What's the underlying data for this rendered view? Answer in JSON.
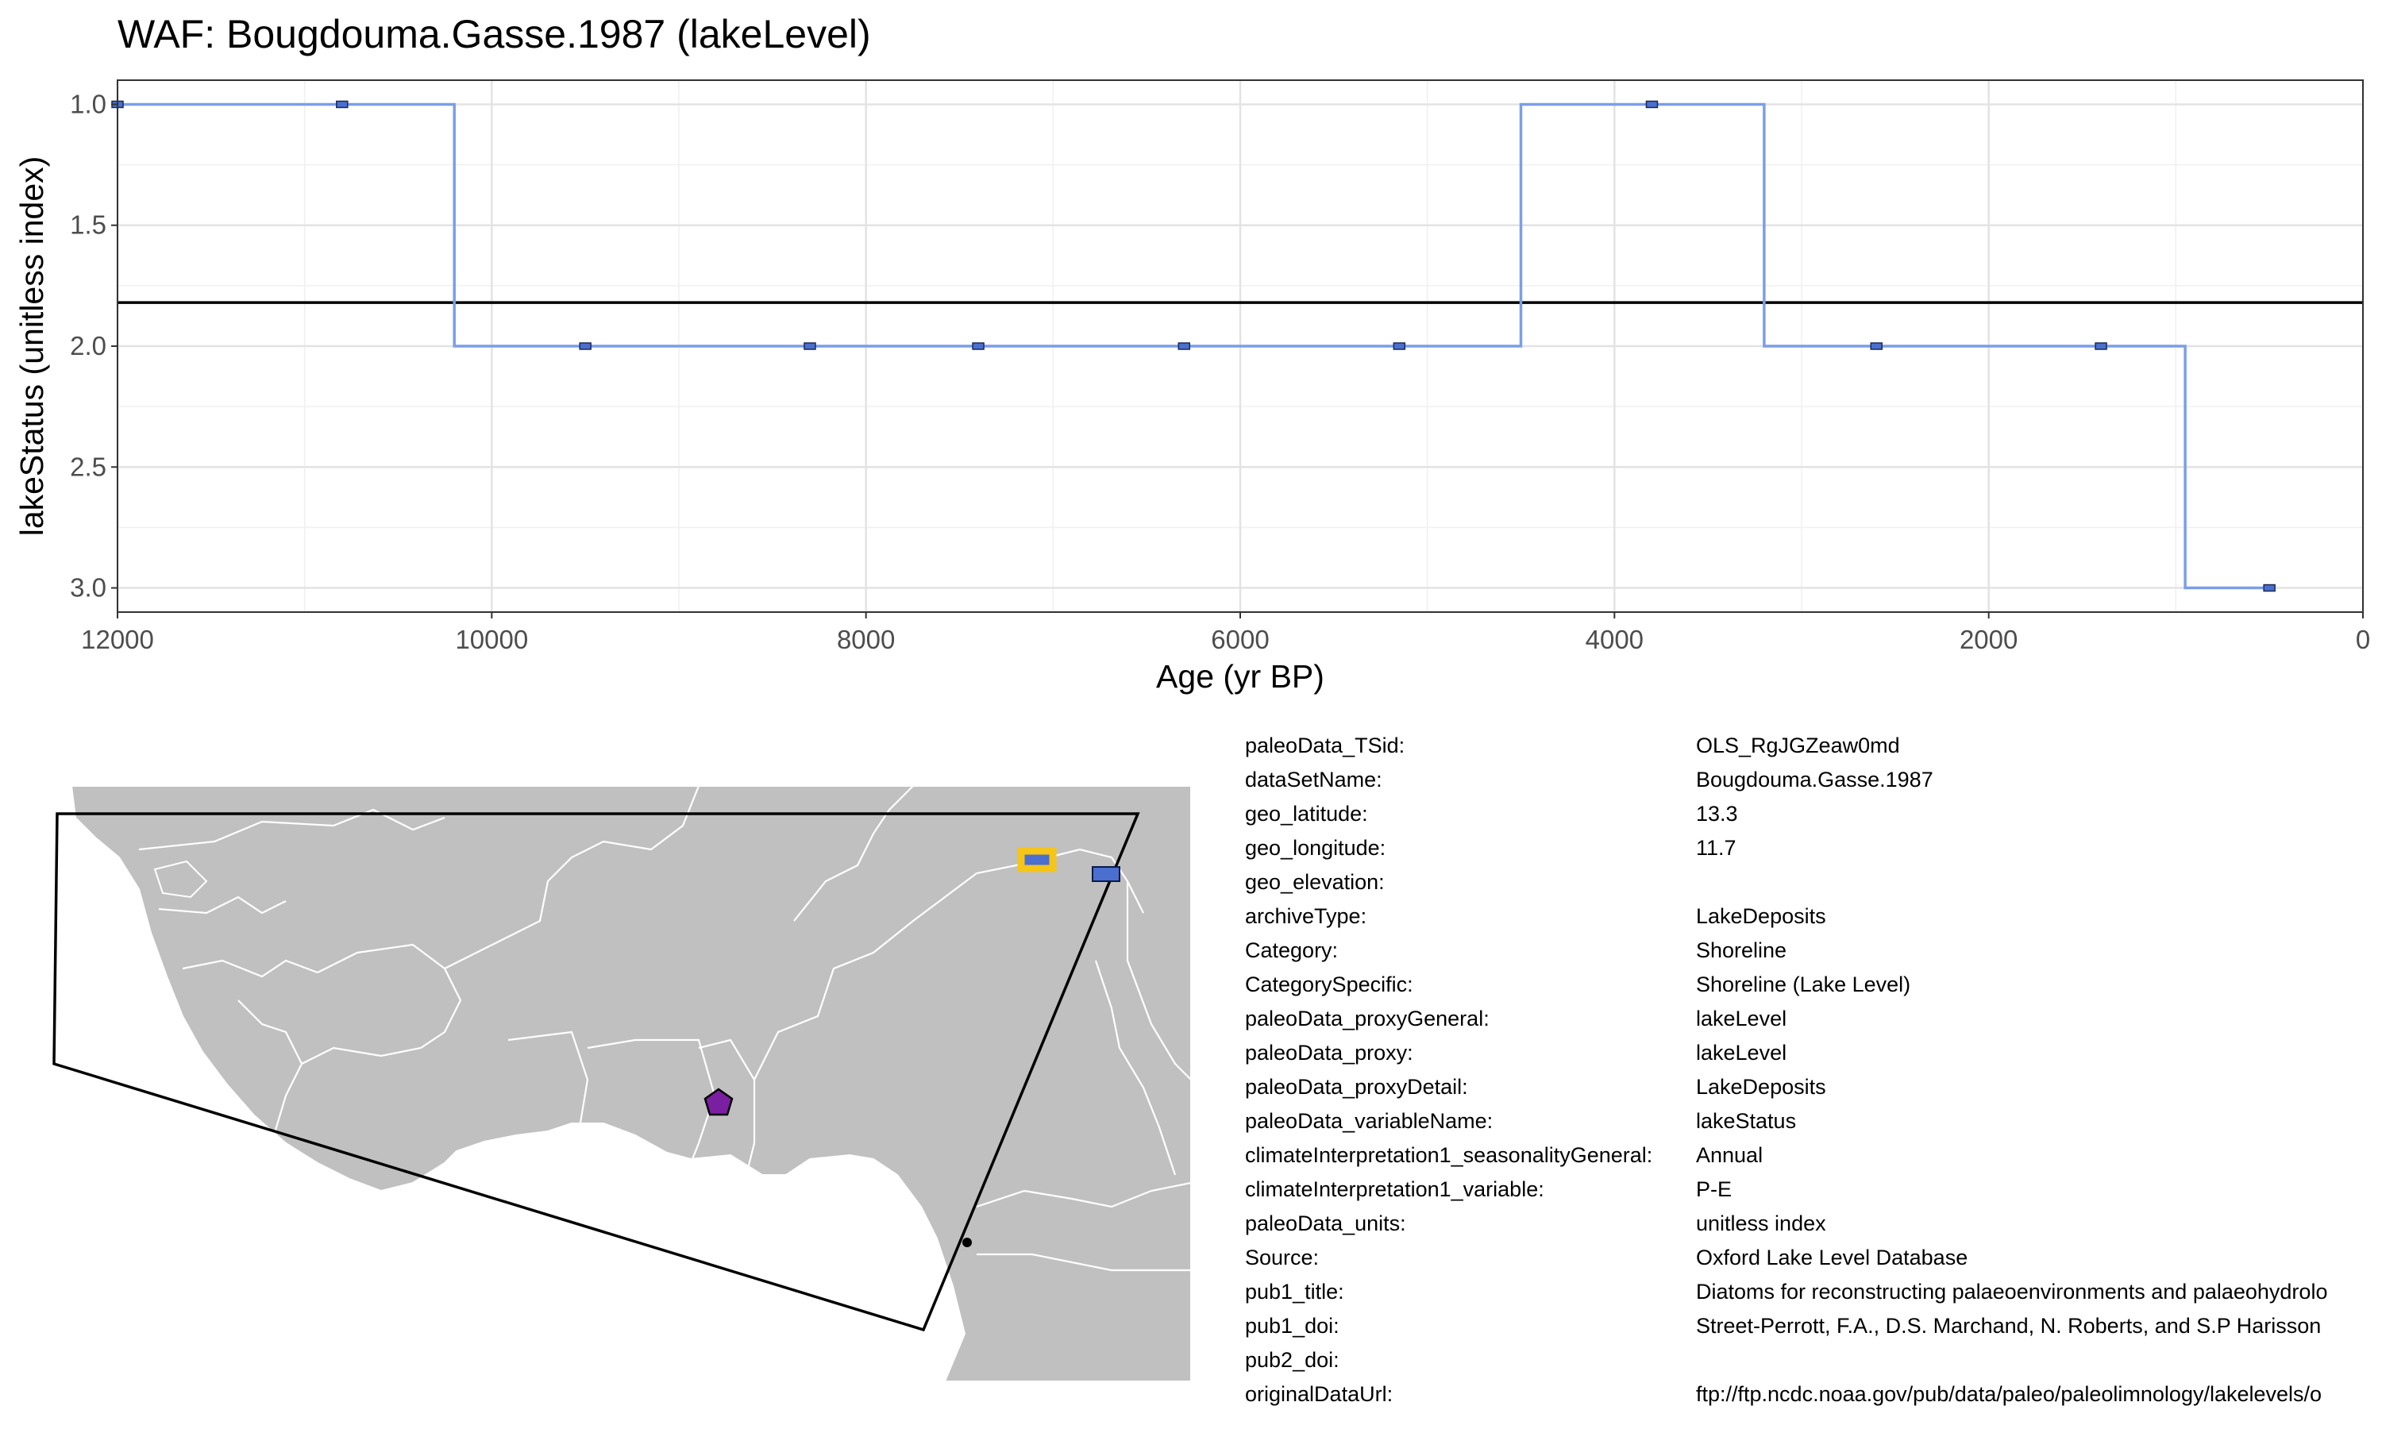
{
  "chart_data": {
    "type": "line",
    "title": "WAF: Bougdouma.Gasse.1987 (lakeLevel)",
    "xlabel": "Age (yr BP)",
    "ylabel": "lakeStatus (unitless index)",
    "xlim": [
      12000,
      0
    ],
    "ylim": [
      3.1,
      0.9
    ],
    "x_reversed": true,
    "y_reversed": true,
    "xticks": [
      12000,
      10000,
      8000,
      6000,
      4000,
      2000,
      0
    ],
    "yticks": [
      1.0,
      1.5,
      2.0,
      2.5,
      3.0
    ],
    "grid": true,
    "reference_line": 1.82,
    "series": [
      {
        "style": "step",
        "color": "#7b9ee8",
        "steps": [
          {
            "x_from": 12000,
            "x_to": 10200,
            "y": 1
          },
          {
            "x_from": 10200,
            "x_to": 4500,
            "y": 2
          },
          {
            "x_from": 4500,
            "x_to": 3200,
            "y": 1
          },
          {
            "x_from": 3200,
            "x_to": 950,
            "y": 2
          },
          {
            "x_from": 950,
            "x_to": 500,
            "y": 3
          }
        ]
      },
      {
        "style": "points",
        "marker_color": "#4a6fcf",
        "x": [
          12000,
          10800,
          9500,
          8300,
          7400,
          6300,
          5150,
          3800,
          2600,
          1400,
          500
        ],
        "y": [
          1,
          1,
          2,
          2,
          2,
          2,
          2,
          1,
          2,
          2,
          3
        ]
      }
    ]
  },
  "metadata_table": [
    {
      "key": "paleoData_TSid:",
      "value": "OLS_RgJGZeaw0md"
    },
    {
      "key": "dataSetName:",
      "value": "Bougdouma.Gasse.1987"
    },
    {
      "key": "geo_latitude:",
      "value": "13.3"
    },
    {
      "key": "geo_longitude:",
      "value": "11.7"
    },
    {
      "key": "geo_elevation:",
      "value": ""
    },
    {
      "key": "archiveType:",
      "value": "LakeDeposits"
    },
    {
      "key": "Category:",
      "value": "Shoreline"
    },
    {
      "key": "CategorySpecific:",
      "value": "Shoreline (Lake Level)"
    },
    {
      "key": "paleoData_proxyGeneral:",
      "value": "lakeLevel"
    },
    {
      "key": "paleoData_proxy:",
      "value": "lakeLevel"
    },
    {
      "key": "paleoData_proxyDetail:",
      "value": "LakeDeposits"
    },
    {
      "key": "paleoData_variableName:",
      "value": "lakeStatus"
    },
    {
      "key": "climateInterpretation1_seasonalityGeneral:",
      "value": "Annual"
    },
    {
      "key": "climateInterpretation1_variable:",
      "value": "P-E"
    },
    {
      "key": "paleoData_units:",
      "value": "unitless index"
    },
    {
      "key": "Source:",
      "value": "Oxford Lake Level Database"
    },
    {
      "key": "pub1_title:",
      "value": "Diatoms for reconstructing palaeoenvironments and palaeohydrolo"
    },
    {
      "key": "pub1_doi:",
      "value": "Street-Perrott, F.A., D.S. Marchand, N. Roberts, and S.P Harisson"
    },
    {
      "key": "pub2_doi:",
      "value": ""
    },
    {
      "key": "originalDataUrl:",
      "value": "ftp://ftp.ncdc.noaa.gov/pub/data/paleo/paleolimnology/lakelevels/o"
    }
  ],
  "map": {
    "land_color": "#c0c0c0",
    "border_color": "#ffffff",
    "site_marker_color": "#4a6fcf",
    "highlight_color": "#f5c518",
    "other_site_color": "#7b1fa2"
  }
}
